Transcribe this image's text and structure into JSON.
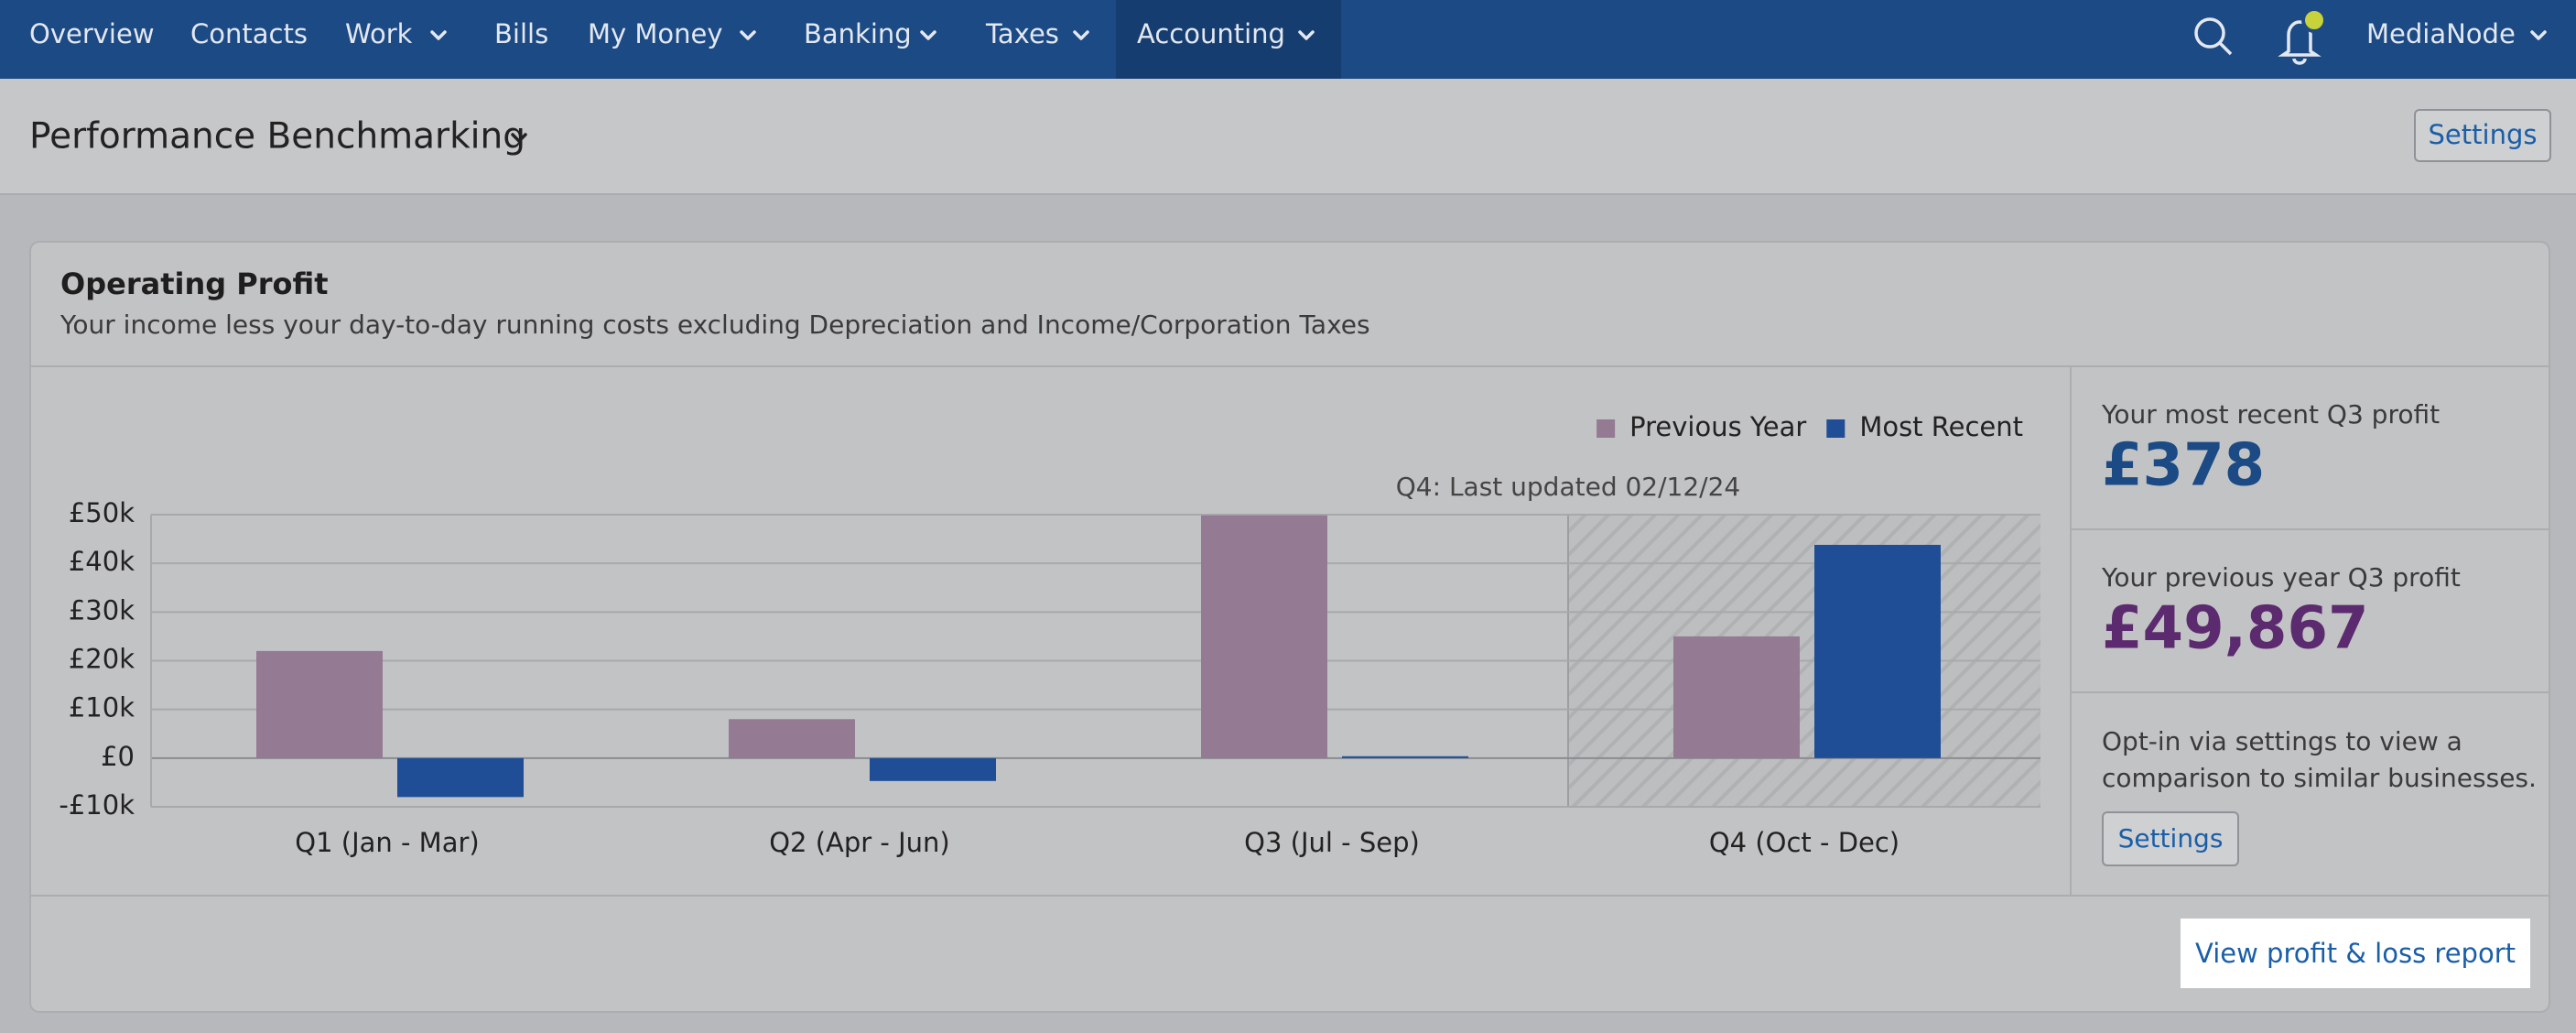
{
  "nav": {
    "items": [
      "Overview",
      "Contacts",
      "Work",
      "Bills",
      "My Money",
      "Banking",
      "Taxes",
      "Accounting"
    ],
    "user": "MediaNode"
  },
  "header": {
    "title": "Performance Benchmarking",
    "settings": "Settings"
  },
  "card": {
    "title": "Operating Profit",
    "subtitle": "Your income less your day-to-day running costs excluding Depreciation and Income/Corporation Taxes",
    "side": {
      "recent_label": "Your most recent Q3 profit",
      "recent_value": "£378",
      "previous_label": "Your previous year Q3 profit",
      "previous_value": "£49,867",
      "optin_lines": [
        "Opt-in via settings to view a",
        "comparison to similar businesses."
      ],
      "settings": "Settings"
    },
    "footer_link": "View profit & loss report"
  },
  "chart_data": {
    "type": "bar",
    "annotation": "Q4: Last updated 02/12/24",
    "categories": [
      "Q1 (Jan - Mar)",
      "Q2 (Apr - Jun)",
      "Q3 (Jul - Sep)",
      "Q4 (Oct - Dec)"
    ],
    "series": [
      {
        "name": "Previous Year",
        "color": "#957a94",
        "values": [
          22000,
          8000,
          49867,
          25000
        ]
      },
      {
        "name": "Most Recent",
        "color": "#1f4e96",
        "values": [
          -8000,
          -4700,
          378,
          43800
        ]
      }
    ],
    "ylim": [
      -10000,
      50000
    ],
    "yticks": [
      {
        "value": -10000,
        "label": "-£10k"
      },
      {
        "value": 0,
        "label": "£0"
      },
      {
        "value": 10000,
        "label": "£10k"
      },
      {
        "value": 20000,
        "label": "£20k"
      },
      {
        "value": 30000,
        "label": "£30k"
      },
      {
        "value": 40000,
        "label": "£40k"
      },
      {
        "value": 50000,
        "label": "£50k"
      }
    ],
    "grid": true,
    "legend": "top-right"
  }
}
